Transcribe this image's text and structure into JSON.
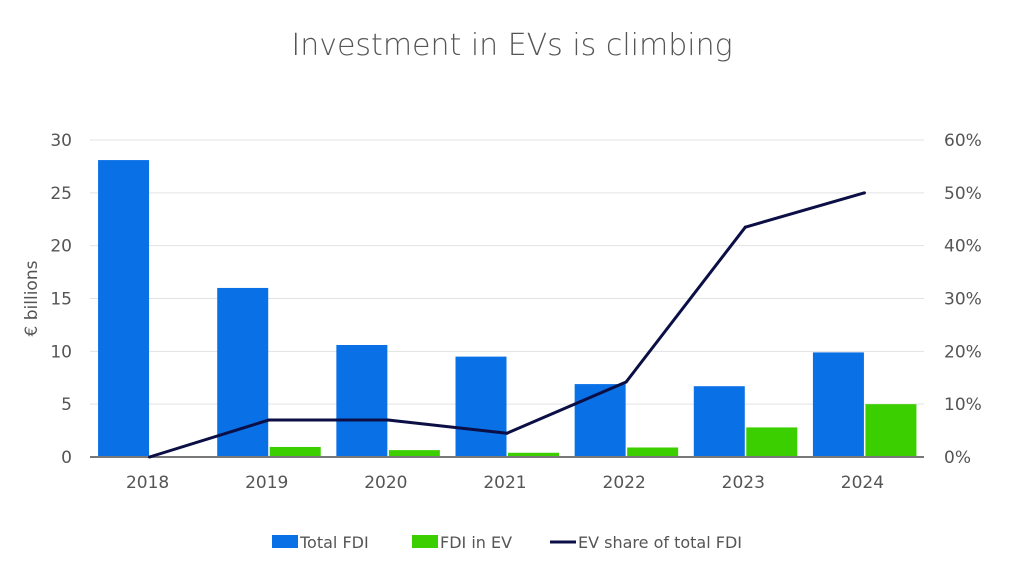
{
  "chart_data": {
    "type": "bar",
    "title": "Investment in EVs is climbing",
    "ylabel": "€ billions",
    "y2label": "",
    "categories": [
      "2018",
      "2019",
      "2020",
      "2021",
      "2022",
      "2023",
      "2024"
    ],
    "ylim": [
      0,
      30
    ],
    "yticks": [
      0,
      5,
      10,
      15,
      20,
      25,
      30
    ],
    "y2lim": [
      0,
      60
    ],
    "y2ticks": [
      "0%",
      "10%",
      "20%",
      "30%",
      "40%",
      "50%",
      "60%"
    ],
    "grid": true,
    "legend_position": "bottom",
    "series": [
      {
        "name": "Total FDI",
        "type": "bar",
        "axis": "left",
        "color": "#0a70e6",
        "values": [
          28.1,
          16.0,
          10.6,
          9.5,
          6.9,
          6.7,
          9.9
        ]
      },
      {
        "name": "FDI in EV",
        "type": "bar",
        "axis": "left",
        "color": "#3ccf00",
        "values": [
          0,
          0.95,
          0.65,
          0.4,
          0.9,
          2.8,
          5.0
        ]
      },
      {
        "name": "EV share of total FDI",
        "type": "line",
        "axis": "right",
        "unit": "%",
        "color": "#0b0f45",
        "values": [
          0,
          7.0,
          7.0,
          4.5,
          14.2,
          43.5,
          50.0
        ]
      }
    ]
  }
}
